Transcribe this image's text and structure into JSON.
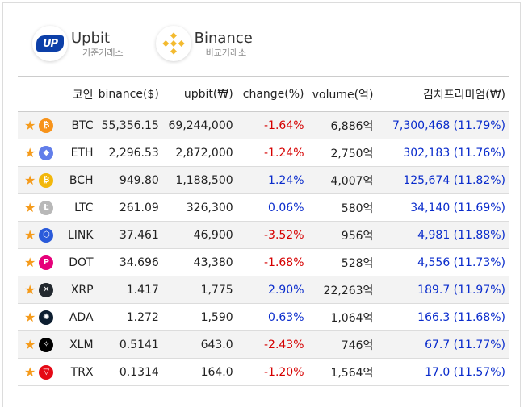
{
  "exchanges": [
    {
      "name": "Upbit",
      "sub": "기준거래소",
      "logo_text": "UP",
      "color": "#0c3fa8"
    },
    {
      "name": "Binance",
      "sub": "비교거래소",
      "color": "#f3ba2f"
    }
  ],
  "table": {
    "headers": [
      "코인",
      "binance($)",
      "upbit(₩)",
      "change(%)",
      "volume(억)",
      "김치프리미엄(₩)"
    ],
    "rows": [
      {
        "symbol": "BTC",
        "icon": "bitcoin-icon",
        "icon_color": "#f7931a",
        "glyph": "₿",
        "binance": "55,356.15",
        "upbit": "69,244,000",
        "change": "-1.64%",
        "dir": "down",
        "volume": "6,886억",
        "kimchi": "7,300,468 (11.79%)"
      },
      {
        "symbol": "ETH",
        "icon": "ethereum-icon",
        "icon_color": "#627eea",
        "glyph": "◆",
        "binance": "2,296.53",
        "upbit": "2,872,000",
        "change": "-1.24%",
        "dir": "down",
        "volume": "2,750억",
        "kimchi": "302,183 (11.76%)"
      },
      {
        "symbol": "BCH",
        "icon": "bitcoin-cash-icon",
        "icon_color": "#f2b70b",
        "glyph": "₿",
        "binance": "949.80",
        "upbit": "1,188,500",
        "change": "1.24%",
        "dir": "up",
        "volume": "4,007억",
        "kimchi": "125,674 (11.82%)"
      },
      {
        "symbol": "LTC",
        "icon": "litecoin-icon",
        "icon_color": "#b8b8b8",
        "glyph": "Ł",
        "binance": "261.09",
        "upbit": "326,300",
        "change": "0.06%",
        "dir": "up",
        "volume": "580억",
        "kimchi": "34,140 (11.69%)"
      },
      {
        "symbol": "LINK",
        "icon": "chainlink-icon",
        "icon_color": "#2a5ada",
        "glyph": "⬡",
        "binance": "37.461",
        "upbit": "46,900",
        "change": "-3.52%",
        "dir": "down",
        "volume": "956억",
        "kimchi": "4,981 (11.88%)"
      },
      {
        "symbol": "DOT",
        "icon": "polkadot-icon",
        "icon_color": "#e6007a",
        "glyph": "P",
        "binance": "34.696",
        "upbit": "43,380",
        "change": "-1.68%",
        "dir": "down",
        "volume": "528억",
        "kimchi": "4,556 (11.73%)"
      },
      {
        "symbol": "XRP",
        "icon": "ripple-icon",
        "icon_color": "#23292f",
        "glyph": "✕",
        "binance": "1.417",
        "upbit": "1,775",
        "change": "2.90%",
        "dir": "up",
        "volume": "22,263억",
        "kimchi": "189.7 (11.97%)"
      },
      {
        "symbol": "ADA",
        "icon": "cardano-icon",
        "icon_color": "#0d1e30",
        "glyph": "✺",
        "binance": "1.272",
        "upbit": "1,590",
        "change": "0.63%",
        "dir": "up",
        "volume": "1,064억",
        "kimchi": "166.3 (11.68%)"
      },
      {
        "symbol": "XLM",
        "icon": "stellar-icon",
        "icon_color": "#000000",
        "glyph": "✧",
        "binance": "0.5141",
        "upbit": "643.0",
        "change": "-2.43%",
        "dir": "down",
        "volume": "746억",
        "kimchi": "67.7 (11.77%)"
      },
      {
        "symbol": "TRX",
        "icon": "tron-icon",
        "icon_color": "#e50915",
        "glyph": "▽",
        "binance": "0.1314",
        "upbit": "164.0",
        "change": "-1.20%",
        "dir": "down",
        "volume": "1,564억",
        "kimchi": "17.0 (11.57%)"
      }
    ]
  },
  "colors": {
    "up": "#0a2ccc",
    "down": "#d60000",
    "star": "#f59b1b"
  }
}
